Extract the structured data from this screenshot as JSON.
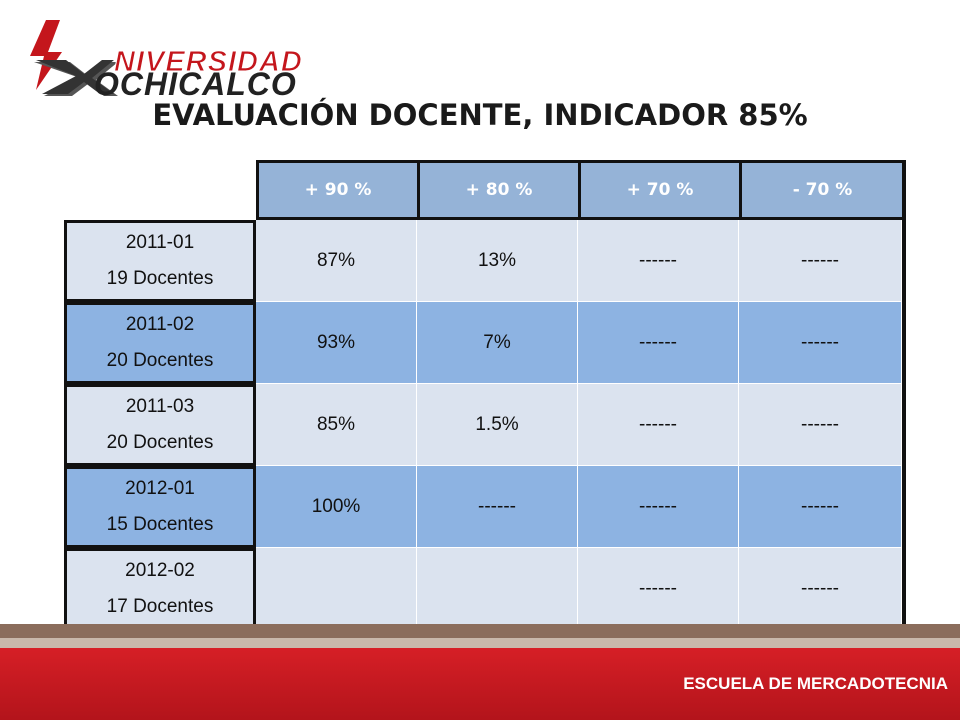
{
  "logo": {
    "line1": "NIVERSIDAD",
    "line2": "OCHICALCO",
    "icon": "xochicalco-logo-icon"
  },
  "title": "EVALUACIÓN DOCENTE, INDICADOR 85%",
  "table": {
    "headers": [
      "+ 90 %",
      "+ 80 %",
      "+ 70 %",
      "- 70 %"
    ],
    "rows": [
      {
        "period": "2011-01",
        "docentes": "19 Docentes",
        "cells": [
          "87%",
          "13%",
          "------",
          "------"
        ]
      },
      {
        "period": "2011-02",
        "docentes": "20 Docentes",
        "cells": [
          "93%",
          "7%",
          "------",
          "------"
        ]
      },
      {
        "period": "2011-03",
        "docentes": "20 Docentes",
        "cells": [
          "85%",
          "1.5%",
          "------",
          "------"
        ]
      },
      {
        "period": "2012-01",
        "docentes": "15 Docentes",
        "cells": [
          "100%",
          "------",
          "------",
          "------"
        ]
      },
      {
        "period": "2012-02",
        "docentes": "17 Docentes",
        "cells": [
          "",
          "",
          "------",
          "------"
        ]
      }
    ]
  },
  "footer": {
    "label": "ESCUELA DE MERCADOTECNIA"
  },
  "colors": {
    "header": "#95b3d7",
    "row_light": "#dbe3ef",
    "row_dark": "#8db3e2",
    "footer_red": "#d61f26"
  }
}
